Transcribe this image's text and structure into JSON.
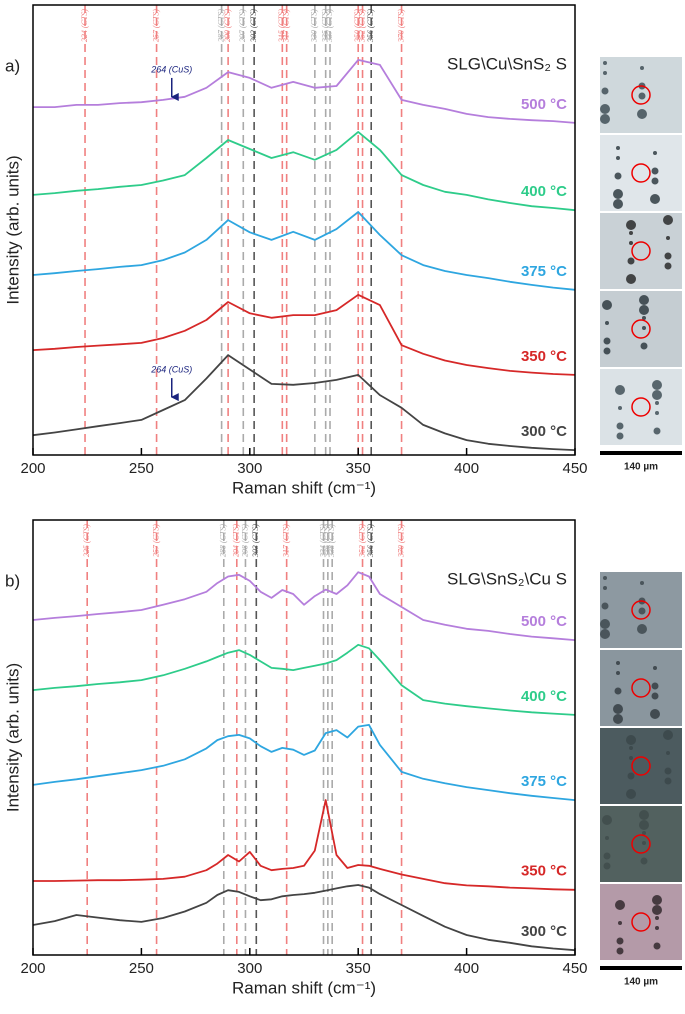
{
  "chart_data": [
    {
      "type": "line",
      "panel_label": "a)",
      "title": "SLG\\Cu\\SnS₂ S",
      "x_label": "Raman shift (cm⁻¹)",
      "y_label": "Intensity (arb. units)",
      "xlim": [
        200,
        450
      ],
      "xticks": [
        200,
        250,
        300,
        350,
        400,
        450
      ],
      "ylim": [
        0,
        100
      ],
      "x": [
        200,
        210,
        220,
        230,
        240,
        250,
        260,
        270,
        280,
        290,
        300,
        310,
        320,
        330,
        340,
        350,
        360,
        370,
        380,
        390,
        400,
        410,
        420,
        430,
        440,
        450
      ],
      "series": [
        {
          "name": "500 °C",
          "color": "#b57edc",
          "values": [
            77.3,
            77.3,
            77.8,
            77.8,
            78.2,
            78.4,
            78.9,
            79.6,
            81.6,
            85.1,
            83.8,
            81.6,
            82.9,
            81.6,
            82,
            87.8,
            86.7,
            78.9,
            77.8,
            76.9,
            75.8,
            75.1,
            74.7,
            74.4,
            74.2,
            73.8
          ]
        },
        {
          "name": "400 °C",
          "color": "#2ecc8a",
          "values": [
            57.8,
            58.2,
            58.7,
            59.1,
            59.6,
            60,
            61,
            62.2,
            66,
            70,
            68,
            66,
            67.3,
            65.6,
            67.8,
            71.8,
            67.8,
            62.2,
            60,
            58.5,
            57.8,
            56.8,
            56,
            55.3,
            54.9,
            54.4
          ]
        },
        {
          "name": "375 °C",
          "color": "#2ea6e0",
          "values": [
            40,
            40.4,
            40.9,
            41.3,
            41.8,
            42.2,
            43.3,
            45,
            47.8,
            52.2,
            49.5,
            47.8,
            49.6,
            47.8,
            50.2,
            54,
            48.9,
            44.4,
            42.2,
            40.9,
            40,
            39.3,
            38.5,
            37.8,
            37.2,
            36.7
          ]
        },
        {
          "name": "350 °C",
          "color": "#d62828",
          "values": [
            23.3,
            23.6,
            24,
            24.3,
            24.6,
            24.9,
            26,
            27.6,
            30,
            34,
            31.5,
            30.5,
            31.1,
            31.1,
            32.2,
            35.6,
            33.3,
            24.4,
            22.5,
            21,
            20,
            19.3,
            18.7,
            18.3,
            18,
            17.8
          ]
        },
        {
          "name": "300 °C",
          "color": "#444444",
          "values": [
            4.4,
            5,
            5.7,
            6.4,
            7.1,
            7.8,
            10,
            12.2,
            17,
            22.2,
            19,
            15.8,
            15.6,
            16,
            16.7,
            17.8,
            13.3,
            10.5,
            6.7,
            4.8,
            3.3,
            2.5,
            2,
            1.6,
            1.3,
            1.1
          ]
        }
      ],
      "reference_lines": [
        {
          "value": 224,
          "label": "224 (CTS)",
          "color": "#f08080"
        },
        {
          "value": 257,
          "label": "257 (CTS)",
          "color": "#f08080"
        },
        {
          "value": 287,
          "label": "287 (CTS)",
          "color": "#aaaaaa"
        },
        {
          "value": 290,
          "label": "290 (CTS)",
          "color": "#f08080"
        },
        {
          "value": 297,
          "label": "297 (CTS)",
          "color": "#aaaaaa"
        },
        {
          "value": 302,
          "label": "302 (CTS)",
          "color": "#555555"
        },
        {
          "value": 315,
          "label": "315 (CTS)",
          "color": "#f08080"
        },
        {
          "value": 317,
          "label": "317 (CTS)",
          "color": "#f08080"
        },
        {
          "value": 330,
          "label": "330 (CTS)",
          "color": "#aaaaaa"
        },
        {
          "value": 335,
          "label": "335 (CTS)",
          "color": "#aaaaaa"
        },
        {
          "value": 337,
          "label": "337 (CTS)",
          "color": "#aaaaaa"
        },
        {
          "value": 350,
          "label": "350 (CTS)",
          "color": "#f08080"
        },
        {
          "value": 352,
          "label": "352 (CTS)",
          "color": "#f08080"
        },
        {
          "value": 356,
          "label": "356 (CTS)",
          "color": "#555555"
        },
        {
          "value": 370,
          "label": "370 (CTS)",
          "color": "#f08080"
        }
      ],
      "annotations": [
        {
          "text": "264 (CuS)",
          "x": 264,
          "y": 78.9
        },
        {
          "text": "264 (CuS)",
          "x": 264,
          "y": 12.2
        }
      ],
      "scale_bar": "140 µm"
    },
    {
      "type": "line",
      "panel_label": "b)",
      "title": "SLG\\SnS₂\\Cu S",
      "x_label": "Raman shift (cm⁻¹)",
      "y_label": "Intensity (arb. units)",
      "xlim": [
        200,
        450
      ],
      "xticks": [
        200,
        250,
        300,
        350,
        400,
        450
      ],
      "ylim": [
        0,
        100
      ],
      "x": [
        200,
        210,
        220,
        230,
        240,
        250,
        260,
        270,
        280,
        285,
        290,
        295,
        300,
        305,
        310,
        315,
        320,
        325,
        330,
        335,
        340,
        345,
        350,
        355,
        360,
        370,
        380,
        390,
        400,
        410,
        420,
        430,
        440,
        450
      ],
      "series": [
        {
          "name": "500 °C",
          "color": "#b57edc",
          "values": [
            77,
            77.5,
            77.9,
            78.4,
            78.8,
            79.3,
            80.5,
            81.8,
            83.5,
            85.5,
            87,
            87.4,
            86,
            83.5,
            82.1,
            83.9,
            83,
            80.5,
            82.5,
            84,
            83,
            85,
            88,
            87,
            83,
            80,
            77,
            75.9,
            75,
            74.5,
            73.8,
            73.2,
            72.8,
            72.4
          ]
        },
        {
          "name": "400 °C",
          "color": "#2ecc8a",
          "values": [
            60.9,
            61.4,
            61.8,
            62.3,
            62.7,
            63.2,
            64.3,
            65.8,
            67.5,
            68.5,
            69.5,
            70.1,
            69,
            67.5,
            66,
            65.8,
            65.5,
            66,
            66.5,
            67,
            67.8,
            69.5,
            71.3,
            70.5,
            67.8,
            62,
            58.6,
            57.8,
            57.2,
            56.7,
            56.2,
            55.8,
            55.5,
            55.2
          ]
        },
        {
          "name": "375 °C",
          "color": "#2ea6e0",
          "values": [
            39.1,
            39.8,
            40.4,
            41.1,
            41.8,
            42.5,
            43.5,
            45,
            47.5,
            49.4,
            50.3,
            50.6,
            49.8,
            48,
            46.7,
            47.6,
            47.2,
            46,
            47,
            51,
            51.7,
            50,
            52.5,
            52.9,
            48.3,
            42.1,
            40.5,
            39.5,
            38.6,
            37.9,
            37.2,
            36.6,
            36.1,
            35.6
          ]
        },
        {
          "name": "350 °C",
          "color": "#d62828",
          "values": [
            17,
            17,
            17.1,
            17.2,
            17.2,
            17.3,
            17.5,
            18,
            19.5,
            21,
            23,
            21.5,
            23.7,
            20.5,
            19.5,
            19.8,
            20,
            20.5,
            24,
            35.6,
            23,
            20,
            20.7,
            20.5,
            19.8,
            18.5,
            17.5,
            16.5,
            16,
            15.8,
            15.5,
            15.3,
            15.1,
            15
          ]
        },
        {
          "name": "300 °C",
          "color": "#444444",
          "values": [
            6.9,
            7.8,
            9.2,
            8.6,
            8,
            7.6,
            8.5,
            10,
            12,
            13.8,
            14.9,
            14.5,
            13.5,
            12.6,
            12.8,
            13.5,
            13.8,
            14,
            14.3,
            14.8,
            15.3,
            15.8,
            16.1,
            15.5,
            14,
            11.5,
            9,
            6.5,
            4.6,
            3.5,
            2.8,
            2,
            1.5,
            1.1
          ]
        }
      ],
      "reference_lines": [
        {
          "value": 225,
          "label": "225 (CTS)",
          "color": "#f08080"
        },
        {
          "value": 257,
          "label": "257 (CTS)",
          "color": "#f08080"
        },
        {
          "value": 288,
          "label": "288 (CTS)",
          "color": "#aaaaaa"
        },
        {
          "value": 294,
          "label": "294 (CTS)",
          "color": "#f08080"
        },
        {
          "value": 298,
          "label": "298 (CTS)",
          "color": "#aaaaaa"
        },
        {
          "value": 303,
          "label": "303 (CTS)",
          "color": "#555555"
        },
        {
          "value": 317,
          "label": "317 (CTS)",
          "color": "#f08080"
        },
        {
          "value": 334,
          "label": "334 (CTS)",
          "color": "#aaaaaa"
        },
        {
          "value": 336,
          "label": "336 (CTS)",
          "color": "#aaaaaa"
        },
        {
          "value": 338,
          "label": "338 (CTS)",
          "color": "#aaaaaa"
        },
        {
          "value": 352,
          "label": "352 (CTS)",
          "color": "#f08080"
        },
        {
          "value": 356,
          "label": "356 (CTS)",
          "color": "#555555"
        },
        {
          "value": 370,
          "label": "370 (CTS)",
          "color": "#f08080"
        }
      ],
      "annotations": [],
      "scale_bar": "140 µm"
    }
  ]
}
